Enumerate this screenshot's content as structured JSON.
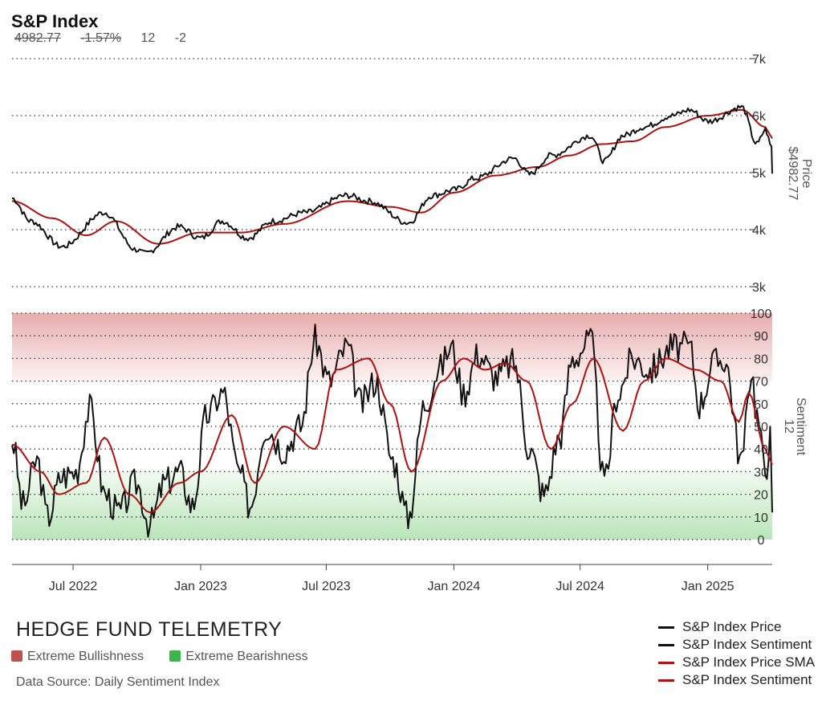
{
  "header": {
    "title": "S&P Index",
    "price": "4982.77",
    "change_pct": "-1.57%",
    "sentiment": "12",
    "sentiment_change": "-2"
  },
  "footer": {
    "brand": "HEDGE FUND TELEMETRY",
    "zones": [
      {
        "label": "Extreme Bullishness",
        "color": "#c0504d"
      },
      {
        "label": "Extreme Bearishness",
        "color": "#3cb64a"
      }
    ],
    "source": "Data Source: Daily Sentiment Index"
  },
  "legend": [
    {
      "label": "S&P Index Price",
      "color": "#111111"
    },
    {
      "label": "S&P Index Sentiment",
      "color": "#111111"
    },
    {
      "label": "S&P Index Price SMA",
      "color": "#b01010"
    },
    {
      "label": "S&P Index Sentiment",
      "color": "#b01010"
    }
  ],
  "axes": {
    "price_label": "Price",
    "price_value": "$4982.77",
    "sentiment_label": "Sentiment",
    "sentiment_value": "12"
  },
  "chart_data": [
    {
      "type": "line",
      "title": "S&P Index",
      "x_ticks": [
        "Jul 2022",
        "Jan 2023",
        "Jul 2023",
        "Jan 2024",
        "Jul 2024",
        "Jan 2025"
      ],
      "x_range": [
        "2022-04-04",
        "2025-04-04"
      ],
      "ylabel": "Price",
      "ylim": [
        3000,
        7000
      ],
      "y_ticks": [
        "3k",
        "4k",
        "5k",
        "6k",
        "7k"
      ],
      "grid": true,
      "series": [
        {
          "name": "S&P Index Price",
          "color": "#111111",
          "x": [
            "2022-04-04",
            "2022-05-01",
            "2022-06-15",
            "2022-08-15",
            "2022-09-30",
            "2022-10-12",
            "2022-12-01",
            "2023-01-01",
            "2023-02-01",
            "2023-03-10",
            "2023-04-15",
            "2023-06-01",
            "2023-07-31",
            "2023-09-01",
            "2023-10-27",
            "2023-12-01",
            "2024-01-02",
            "2024-02-01",
            "2024-03-28",
            "2024-04-19",
            "2024-05-20",
            "2024-07-16",
            "2024-08-05",
            "2024-09-01",
            "2024-10-01",
            "2024-11-11",
            "2024-12-06",
            "2025-01-02",
            "2025-02-19",
            "2025-03-13",
            "2025-03-25",
            "2025-04-03",
            "2025-04-04"
          ],
          "values": [
            4550,
            4150,
            3700,
            4300,
            3650,
            3580,
            4050,
            3850,
            4150,
            3850,
            4150,
            4300,
            4600,
            4500,
            4120,
            4600,
            4700,
            4900,
            5250,
            4970,
            5300,
            5650,
            5200,
            5650,
            5800,
            6000,
            6100,
            5900,
            6150,
            5500,
            5750,
            5450,
            4982
          ]
        },
        {
          "name": "S&P Index Price SMA",
          "color": "#b01010",
          "x": [
            "2022-04-04",
            "2022-06-01",
            "2022-07-20",
            "2022-09-01",
            "2022-11-01",
            "2023-01-01",
            "2023-03-01",
            "2023-05-01",
            "2023-08-01",
            "2023-10-01",
            "2023-11-15",
            "2024-01-01",
            "2024-03-01",
            "2024-05-01",
            "2024-06-15",
            "2024-08-01",
            "2024-09-15",
            "2024-11-01",
            "2025-01-01",
            "2025-02-20",
            "2025-03-25",
            "2025-04-04"
          ],
          "values": [
            4500,
            4200,
            3900,
            4150,
            3750,
            3950,
            3950,
            4100,
            4500,
            4400,
            4300,
            4650,
            4950,
            5100,
            5300,
            5500,
            5550,
            5800,
            6000,
            6100,
            5800,
            5600
          ]
        }
      ]
    },
    {
      "type": "line",
      "x_range": [
        "2022-04-04",
        "2025-04-04"
      ],
      "ylabel": "Sentiment",
      "ylim": [
        0,
        100
      ],
      "y_ticks": [
        0,
        10,
        20,
        30,
        40,
        50,
        60,
        70,
        80,
        90,
        100
      ],
      "zones": [
        {
          "label": "Extreme Bullishness",
          "from": 70,
          "to": 100,
          "color": "#c0504d"
        },
        {
          "label": "Extreme Bearishness",
          "from": 0,
          "to": 30,
          "color": "#3cb64a"
        }
      ],
      "grid": true,
      "series": [
        {
          "name": "S&P Index Sentiment",
          "color": "#111111",
          "x": [
            "2022-04-04",
            "2022-04-20",
            "2022-05-10",
            "2022-05-25",
            "2022-06-15",
            "2022-07-05",
            "2022-07-25",
            "2022-08-16",
            "2022-09-05",
            "2022-09-30",
            "2022-10-20",
            "2022-11-10",
            "2022-12-01",
            "2022-12-20",
            "2023-01-10",
            "2023-02-02",
            "2023-02-25",
            "2023-03-13",
            "2023-04-05",
            "2023-05-01",
            "2023-05-25",
            "2023-06-15",
            "2023-07-05",
            "2023-07-31",
            "2023-08-20",
            "2023-09-10",
            "2023-10-05",
            "2023-10-27",
            "2023-11-20",
            "2023-12-10",
            "2023-12-28",
            "2024-01-15",
            "2024-02-05",
            "2024-03-01",
            "2024-03-28",
            "2024-04-19",
            "2024-05-10",
            "2024-06-01",
            "2024-06-20",
            "2024-07-16",
            "2024-08-05",
            "2024-08-25",
            "2024-09-15",
            "2024-10-10",
            "2024-11-11",
            "2024-12-06",
            "2024-12-20",
            "2025-01-10",
            "2025-01-25",
            "2025-02-19",
            "2025-03-05",
            "2025-03-13",
            "2025-03-25",
            "2025-04-01",
            "2025-04-04"
          ],
          "values": [
            44,
            15,
            35,
            10,
            28,
            30,
            58,
            20,
            12,
            25,
            7,
            25,
            30,
            15,
            55,
            65,
            30,
            15,
            50,
            40,
            50,
            88,
            70,
            85,
            60,
            70,
            35,
            10,
            60,
            75,
            85,
            65,
            82,
            72,
            78,
            40,
            20,
            45,
            80,
            88,
            25,
            65,
            80,
            75,
            85,
            85,
            60,
            78,
            80,
            35,
            75,
            55,
            30,
            45,
            12
          ]
        },
        {
          "name": "S&P Index Sentiment",
          "color": "#b01010",
          "x": [
            "2022-04-04",
            "2022-05-15",
            "2022-06-10",
            "2022-07-20",
            "2022-08-15",
            "2022-09-20",
            "2022-10-20",
            "2022-12-01",
            "2023-01-01",
            "2023-02-15",
            "2023-03-20",
            "2023-05-01",
            "2023-06-15",
            "2023-07-15",
            "2023-08-31",
            "2023-10-01",
            "2023-11-01",
            "2023-12-15",
            "2024-01-15",
            "2024-02-15",
            "2024-03-15",
            "2024-04-15",
            "2024-05-20",
            "2024-06-20",
            "2024-07-20",
            "2024-09-01",
            "2024-10-01",
            "2024-11-01",
            "2024-12-15",
            "2025-01-20",
            "2025-02-15",
            "2025-03-01",
            "2025-03-25",
            "2025-04-04"
          ],
          "values": [
            42,
            30,
            20,
            25,
            45,
            20,
            12,
            25,
            30,
            55,
            25,
            50,
            40,
            75,
            80,
            60,
            30,
            70,
            80,
            75,
            78,
            70,
            40,
            60,
            80,
            48,
            70,
            80,
            75,
            70,
            52,
            65,
            40,
            33
          ]
        }
      ]
    }
  ]
}
